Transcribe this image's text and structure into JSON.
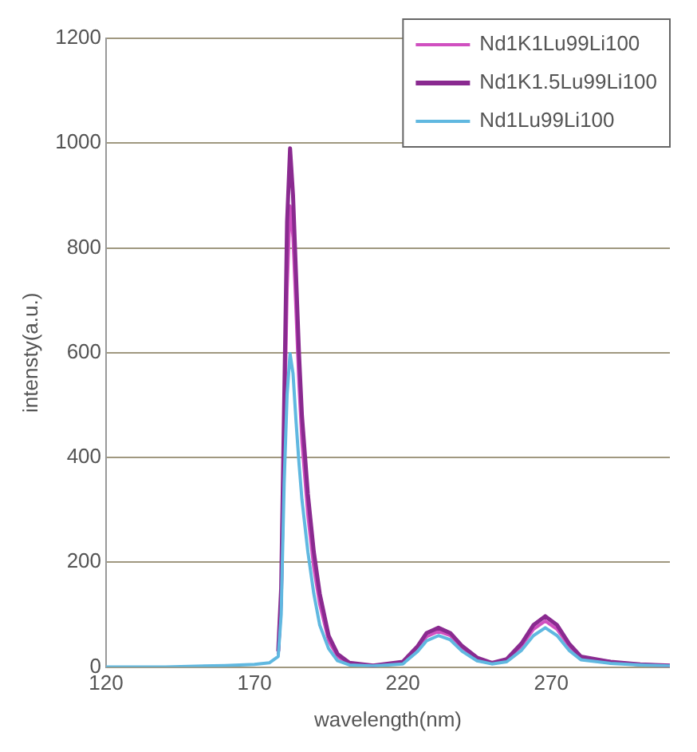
{
  "chart_data": {
    "type": "line",
    "xlabel": "wavelength(nm)",
    "ylabel": "intensty(a.u.)",
    "x": [
      120,
      140,
      160,
      170,
      175,
      178,
      179,
      180,
      181,
      182,
      183,
      184,
      185,
      186,
      188,
      190,
      192,
      195,
      198,
      202,
      210,
      220,
      225,
      228,
      232,
      236,
      240,
      245,
      250,
      255,
      260,
      264,
      268,
      272,
      276,
      280,
      290,
      300,
      310
    ],
    "series": [
      {
        "name": "Nd1K1Lu99Li100",
        "color": "#d050c0",
        "values": [
          null,
          null,
          null,
          null,
          null,
          25,
          120,
          420,
          720,
          880,
          820,
          680,
          540,
          430,
          290,
          190,
          120,
          50,
          20,
          6,
          3,
          8,
          35,
          58,
          68,
          60,
          36,
          15,
          7,
          13,
          40,
          72,
          88,
          72,
          40,
          18,
          9,
          5,
          3
        ]
      },
      {
        "name": "Nd1K1.5Lu99Li100",
        "color": "#8a2a90",
        "values": [
          null,
          null,
          null,
          null,
          null,
          30,
          150,
          500,
          850,
          990,
          900,
          750,
          600,
          480,
          330,
          220,
          140,
          60,
          25,
          8,
          3,
          10,
          40,
          65,
          75,
          65,
          40,
          18,
          8,
          15,
          45,
          80,
          97,
          80,
          45,
          20,
          10,
          5,
          3
        ]
      },
      {
        "name": "Nd1Lu99Li100",
        "color": "#60b8e0",
        "values": [
          0,
          0,
          3,
          5,
          8,
          20,
          100,
          350,
          520,
          598,
          560,
          470,
          390,
          320,
          220,
          140,
          80,
          35,
          12,
          4,
          2,
          6,
          30,
          50,
          60,
          52,
          30,
          12,
          6,
          10,
          32,
          60,
          75,
          60,
          32,
          14,
          7,
          4,
          2
        ]
      }
    ],
    "xlim": [
      120,
      310
    ],
    "xticks": [
      120,
      170,
      220,
      270
    ],
    "ylim": [
      0,
      1200
    ],
    "yticks": [
      0,
      200,
      400,
      600,
      800,
      1000,
      1200
    ],
    "grid": "y",
    "legend": "top right",
    "marker": "none",
    "line_style": "solid"
  }
}
